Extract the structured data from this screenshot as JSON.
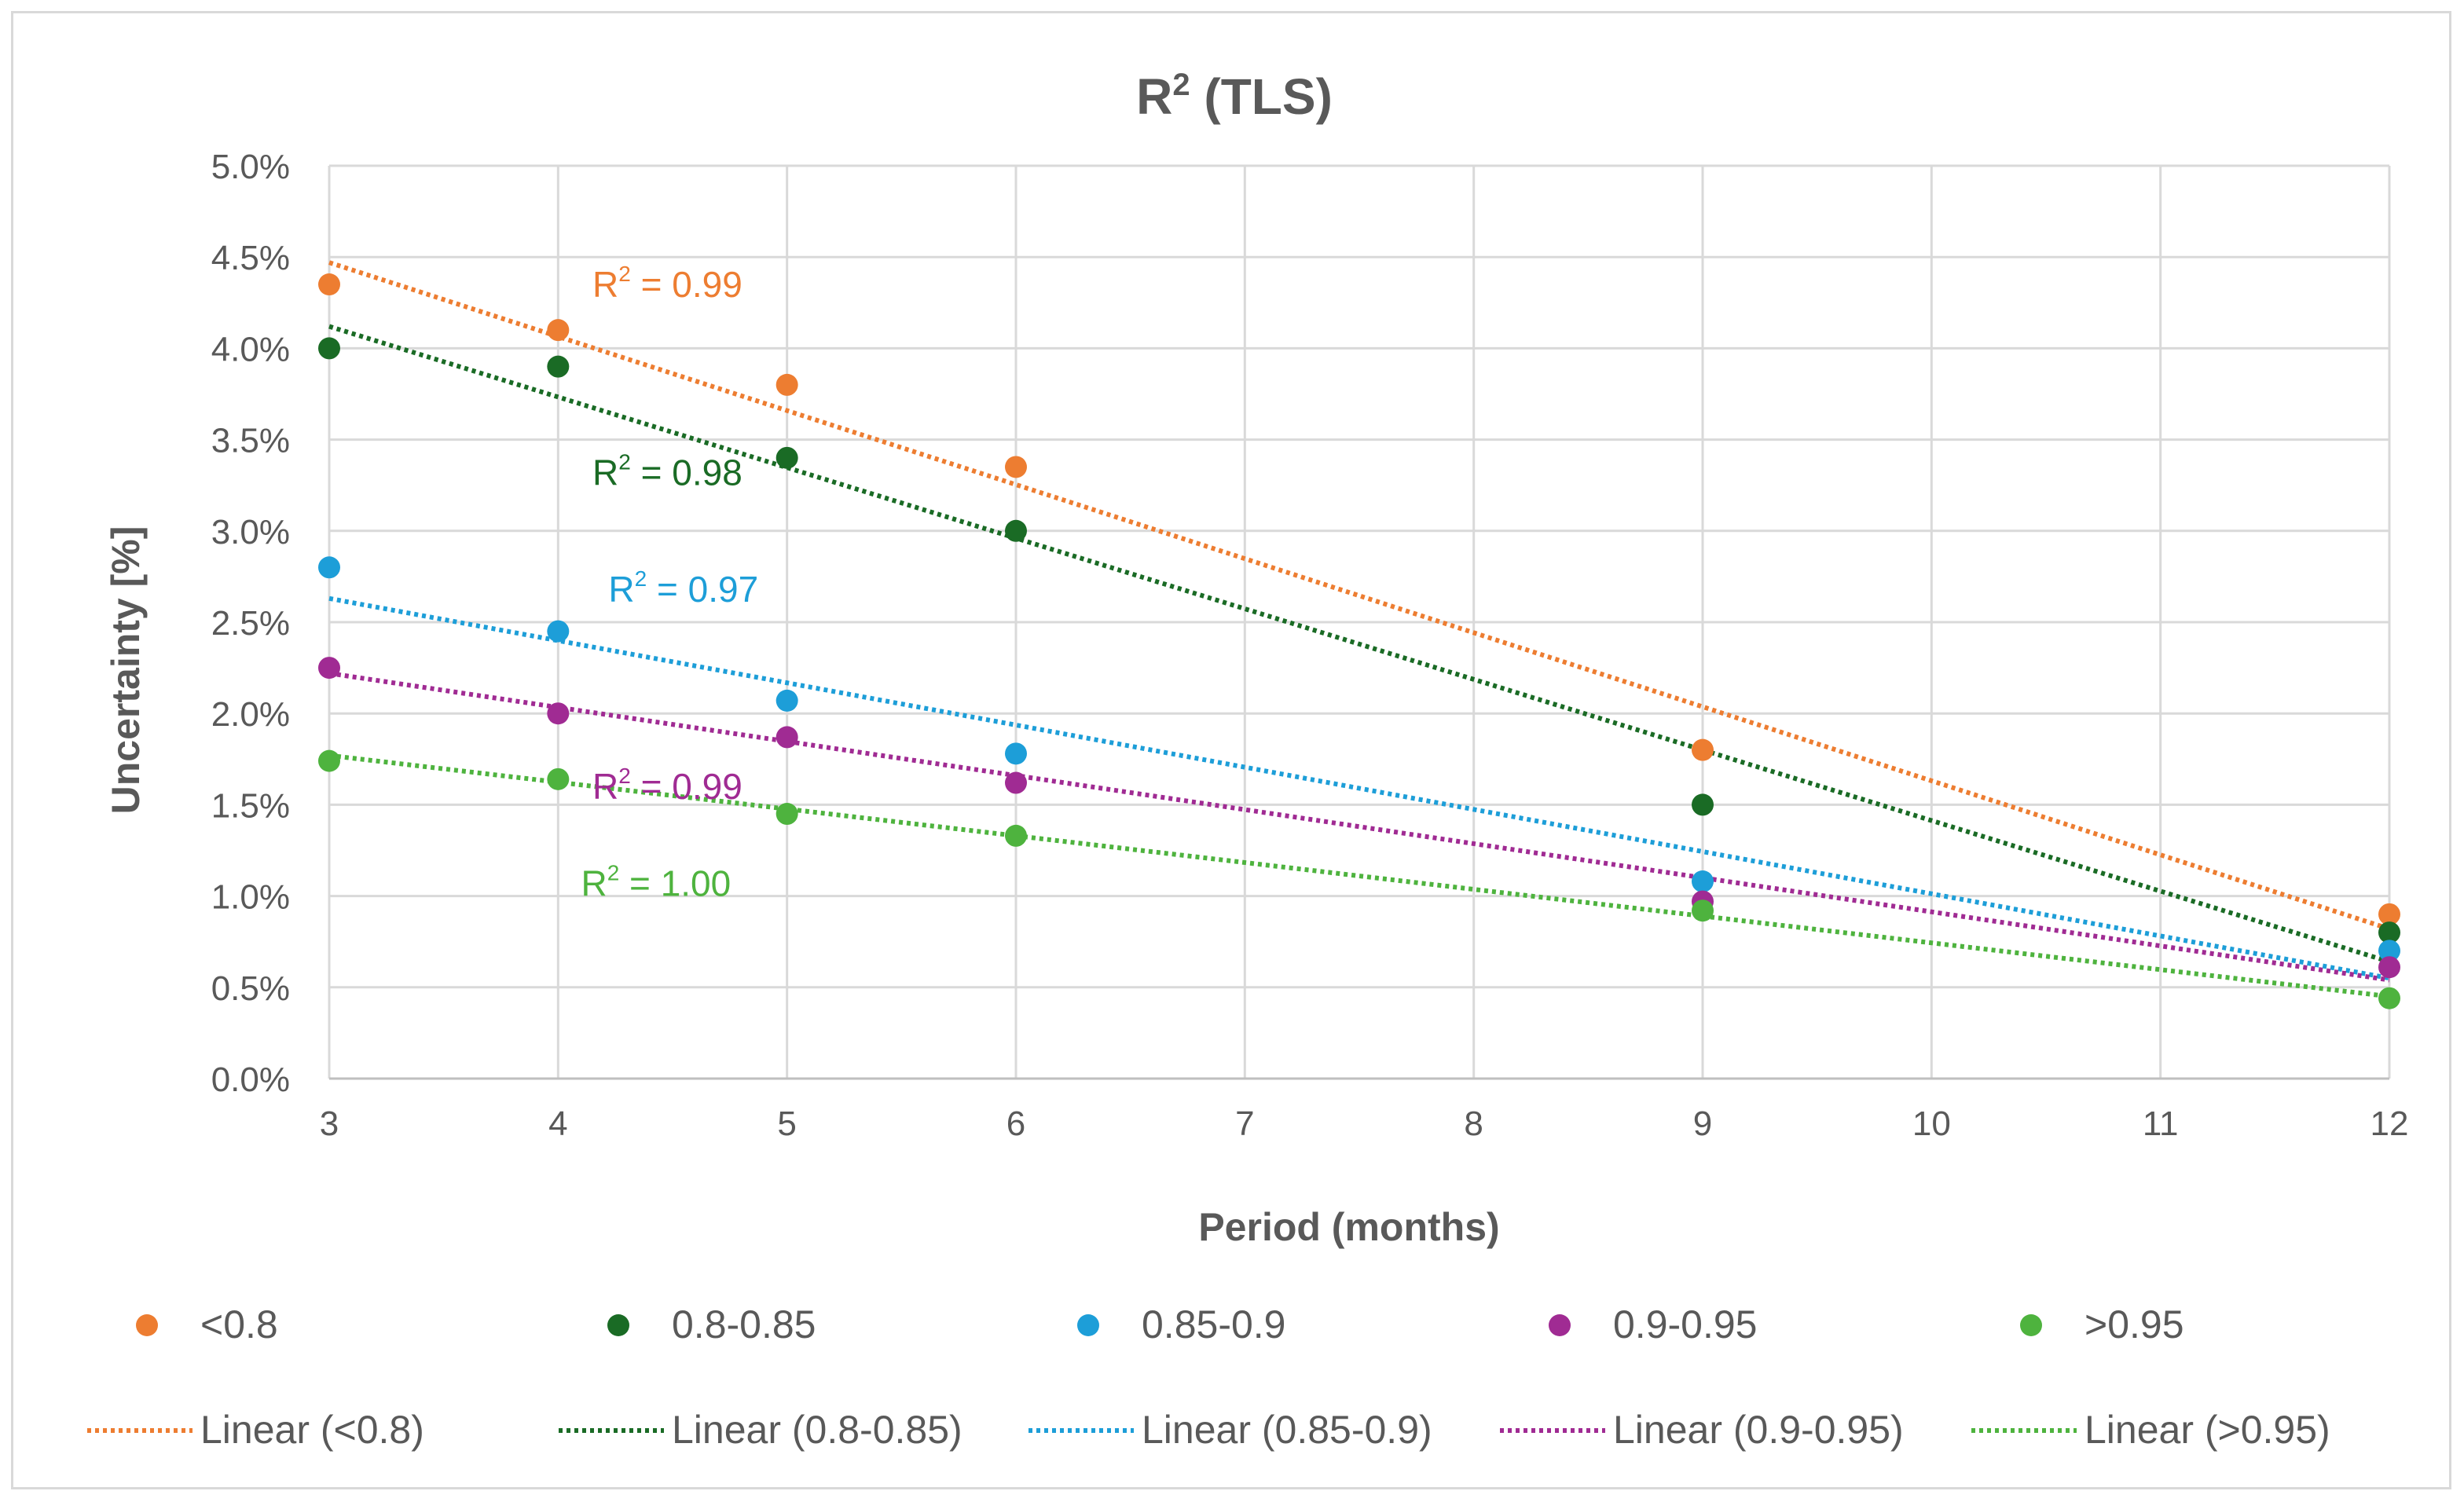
{
  "chart_data": {
    "type": "scatter",
    "title": "R² (TLS)",
    "title_base": "R",
    "title_sup": "2",
    "title_rest": " (TLS)",
    "xlabel": "Period (months)",
    "ylabel": "Uncertainty [%]",
    "xlim": [
      3,
      12
    ],
    "ylim": [
      0,
      5.0
    ],
    "x_ticks": [
      3,
      4,
      5,
      6,
      7,
      8,
      9,
      10,
      11,
      12
    ],
    "y_ticks": [
      0,
      0.5,
      1.0,
      1.5,
      2.0,
      2.5,
      3.0,
      3.5,
      4.0,
      4.5,
      5.0
    ],
    "y_tick_labels": [
      "0.0%",
      "0.5%",
      "1.0%",
      "1.5%",
      "2.0%",
      "2.5%",
      "3.0%",
      "3.5%",
      "4.0%",
      "4.5%",
      "5.0%"
    ],
    "grid": true,
    "legend_position": "bottom",
    "series": [
      {
        "name": "<0.8",
        "trend_name": "Linear (<0.8)",
        "color": "#ED7D31",
        "x": [
          3,
          4,
          5,
          6,
          9,
          12
        ],
        "y": [
          4.35,
          4.1,
          3.8,
          3.35,
          1.8,
          0.9
        ],
        "trend": [
          4.47,
          0.82
        ],
        "r2_label": "R",
        "r2_sup": "2",
        "r2_value": " = 0.99",
        "r2_at": [
          4.15,
          4.35
        ]
      },
      {
        "name": "0.8-0.85",
        "trend_name": "Linear (0.8-0.85)",
        "color": "#1A6B25",
        "x": [
          3,
          4,
          5,
          6,
          9,
          12
        ],
        "y": [
          4.0,
          3.9,
          3.4,
          3.0,
          1.5,
          0.8
        ],
        "trend": [
          4.12,
          0.64
        ],
        "r2_label": "R",
        "r2_sup": "2",
        "r2_value": " = 0.98",
        "r2_at": [
          4.15,
          3.32
        ]
      },
      {
        "name": "0.85-0.9",
        "trend_name": "Linear (0.85-0.9)",
        "color": "#1D9ED8",
        "x": [
          3,
          4,
          5,
          6,
          9,
          12
        ],
        "y": [
          2.8,
          2.45,
          2.07,
          1.78,
          1.08,
          0.7
        ],
        "trend": [
          2.63,
          0.55
        ],
        "r2_label": "R",
        "r2_sup": "2",
        "r2_value": " = 0.97",
        "r2_at": [
          4.22,
          2.68
        ]
      },
      {
        "name": "0.9-0.95",
        "trend_name": "Linear (0.9-0.95)",
        "color": "#A02B93",
        "x": [
          3,
          4,
          5,
          6,
          9,
          12
        ],
        "y": [
          2.25,
          2.0,
          1.87,
          1.62,
          0.97,
          0.61
        ],
        "trend": [
          2.22,
          0.54
        ],
        "r2_label": "R",
        "r2_sup": "2",
        "r2_value": " = 0.99",
        "r2_at": [
          4.15,
          1.6
        ]
      },
      {
        "name": ">0.95",
        "trend_name": "Linear (>0.95)",
        "color": "#4EB33E",
        "x": [
          3,
          4,
          5,
          6,
          9,
          12
        ],
        "y": [
          1.74,
          1.64,
          1.45,
          1.33,
          0.92,
          0.44
        ],
        "trend": [
          1.77,
          0.45
        ],
        "r2_label": "R",
        "r2_sup": "2",
        "r2_value": " = 1.00",
        "r2_at": [
          4.1,
          1.07
        ]
      }
    ]
  }
}
